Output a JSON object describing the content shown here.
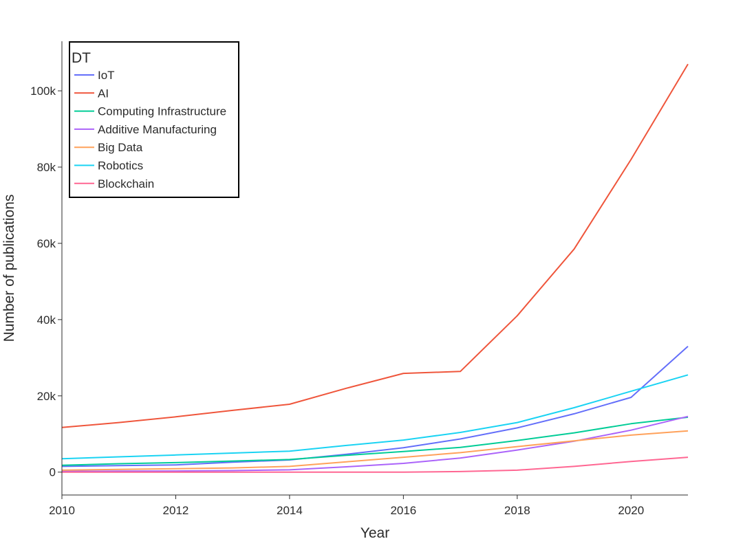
{
  "chart_data": {
    "type": "line",
    "title": "",
    "xlabel": "Year",
    "ylabel": "Number of publications",
    "xlim": [
      2010,
      2021
    ],
    "ylim": [
      -6000,
      113000
    ],
    "x_ticks": [
      2010,
      2012,
      2014,
      2016,
      2018,
      2020
    ],
    "x_tick_labels": [
      "2010",
      "2012",
      "2014",
      "2016",
      "2018",
      "2020"
    ],
    "y_ticks": [
      0,
      20000,
      40000,
      60000,
      80000,
      100000
    ],
    "y_tick_labels": [
      "0",
      "20k",
      "40k",
      "60k",
      "80k",
      "100k"
    ],
    "grid": false,
    "legend": {
      "title": "DT",
      "position": "top-left"
    },
    "x": [
      2010,
      2011,
      2012,
      2013,
      2014,
      2015,
      2016,
      2017,
      2018,
      2019,
      2020,
      2021
    ],
    "series": [
      {
        "name": "IoT",
        "color": "#636efa",
        "values": [
          1500,
          1700,
          1900,
          2600,
          3200,
          4700,
          6400,
          8700,
          11600,
          15300,
          19600,
          33000
        ]
      },
      {
        "name": "AI",
        "color": "#ef553b",
        "values": [
          11700,
          13000,
          14500,
          16200,
          17800,
          22000,
          25900,
          26400,
          41000,
          58500,
          82000,
          107000
        ]
      },
      {
        "name": "Computing Infrastructure",
        "color": "#00cc96",
        "values": [
          1800,
          2200,
          2500,
          2900,
          3300,
          4400,
          5400,
          6500,
          8300,
          10300,
          12700,
          14400
        ]
      },
      {
        "name": "Additive Manufacturing",
        "color": "#ab63fa",
        "values": [
          200,
          250,
          300,
          400,
          600,
          1400,
          2300,
          3700,
          5800,
          8100,
          11000,
          14600
        ]
      },
      {
        "name": "Big Data",
        "color": "#ffa15a",
        "values": [
          500,
          700,
          900,
          1100,
          1500,
          2700,
          3900,
          5100,
          6700,
          8200,
          9700,
          10800
        ]
      },
      {
        "name": "Robotics",
        "color": "#19d3f3",
        "values": [
          3500,
          4000,
          4500,
          5000,
          5500,
          7000,
          8400,
          10400,
          13000,
          16900,
          21200,
          25500
        ]
      },
      {
        "name": "Blockchain",
        "color": "#ff6692",
        "values": [
          0,
          0,
          0,
          0,
          0,
          0,
          0,
          150,
          500,
          1500,
          2800,
          3900
        ]
      }
    ]
  }
}
